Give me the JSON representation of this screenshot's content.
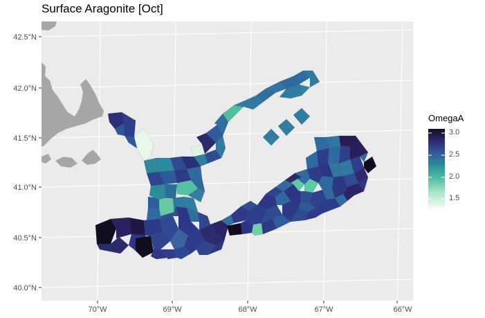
{
  "title": "Surface Aragonite [Oct]",
  "axes": {
    "y_ticks": [
      "42.5°N",
      "42.0°N",
      "41.5°N",
      "41.0°N",
      "40.5°N",
      "40.0°N"
    ],
    "x_ticks": [
      "70°W",
      "69°W",
      "68°W",
      "67°W",
      "66°W"
    ]
  },
  "legend": {
    "title": "OmegaA",
    "labels": [
      "3.0",
      "2.5",
      "2.0",
      "1.5"
    ]
  },
  "colors": {
    "panel": "#ebebeb",
    "grid": "#ffffff",
    "land": "#a6a6a6",
    "scale": [
      "#f2fbee",
      "#6fd0a6",
      "#2f8f99",
      "#2e6d9a",
      "#32418f",
      "#2b2060",
      "#120d1e"
    ]
  },
  "chart_data": {
    "type": "heatmap",
    "title": "Surface Aragonite [Oct]",
    "variable": "OmegaA",
    "xlim": [
      -70.7,
      -65.9
    ],
    "ylim": [
      39.9,
      42.65
    ],
    "color_range": [
      1.3,
      3.15
    ],
    "cells": [
      {
        "lon": -70.0,
        "lat": 40.55,
        "v": 3.05
      },
      {
        "lon": -69.85,
        "lat": 40.6,
        "v": 2.8
      },
      {
        "lon": -69.7,
        "lat": 40.55,
        "v": 2.75
      },
      {
        "lon": -69.55,
        "lat": 40.6,
        "v": 2.65
      },
      {
        "lon": -69.4,
        "lat": 40.55,
        "v": 2.55
      },
      {
        "lon": -69.4,
        "lat": 40.45,
        "v": 3.0
      },
      {
        "lon": -69.25,
        "lat": 40.55,
        "v": 2.5
      },
      {
        "lon": -69.1,
        "lat": 40.5,
        "v": 2.6
      },
      {
        "lon": -68.95,
        "lat": 40.5,
        "v": 2.45
      },
      {
        "lon": -68.8,
        "lat": 40.5,
        "v": 2.55
      },
      {
        "lon": -68.65,
        "lat": 40.5,
        "v": 2.6
      },
      {
        "lon": -68.5,
        "lat": 40.5,
        "v": 2.5
      },
      {
        "lon": -69.6,
        "lat": 40.45,
        "v": 2.85
      },
      {
        "lon": -69.2,
        "lat": 40.4,
        "v": 2.5
      },
      {
        "lon": -68.9,
        "lat": 40.38,
        "v": 2.45
      },
      {
        "lon": -68.6,
        "lat": 40.4,
        "v": 2.55
      },
      {
        "lon": -69.1,
        "lat": 40.65,
        "v": 2.4
      },
      {
        "lon": -68.85,
        "lat": 40.65,
        "v": 2.2
      },
      {
        "lon": -69.2,
        "lat": 40.8,
        "v": 1.8
      },
      {
        "lon": -69.0,
        "lat": 40.85,
        "v": 2.1
      },
      {
        "lon": -68.8,
        "lat": 40.8,
        "v": 2.3
      },
      {
        "lon": -69.1,
        "lat": 41.0,
        "v": 2.2
      },
      {
        "lon": -68.85,
        "lat": 41.0,
        "v": 1.9
      },
      {
        "lon": -68.7,
        "lat": 41.1,
        "v": 2.3
      },
      {
        "lon": -69.2,
        "lat": 41.2,
        "v": 2.15
      },
      {
        "lon": -69.0,
        "lat": 41.2,
        "v": 2.3
      },
      {
        "lon": -68.85,
        "lat": 41.2,
        "v": 2.6
      },
      {
        "lon": -69.3,
        "lat": 41.4,
        "v": 1.5
      },
      {
        "lon": -69.5,
        "lat": 41.6,
        "v": 2.6
      },
      {
        "lon": -68.7,
        "lat": 41.4,
        "v": 1.6
      },
      {
        "lon": -68.6,
        "lat": 41.45,
        "v": 2.7
      },
      {
        "lon": -68.5,
        "lat": 41.6,
        "v": 2.4
      },
      {
        "lon": -68.4,
        "lat": 41.75,
        "v": 2.3
      },
      {
        "lon": -68.2,
        "lat": 41.78,
        "v": 1.95
      },
      {
        "lon": -68.0,
        "lat": 41.85,
        "v": 2.3
      },
      {
        "lon": -67.8,
        "lat": 42.0,
        "v": 2.35
      },
      {
        "lon": -67.55,
        "lat": 42.1,
        "v": 2.3
      },
      {
        "lon": -67.3,
        "lat": 42.1,
        "v": 2.2
      },
      {
        "lon": -67.75,
        "lat": 41.55,
        "v": 2.2
      },
      {
        "lon": -67.55,
        "lat": 41.65,
        "v": 2.2
      },
      {
        "lon": -67.35,
        "lat": 41.7,
        "v": 2.2
      },
      {
        "lon": -68.35,
        "lat": 40.6,
        "v": 2.0
      },
      {
        "lon": -68.15,
        "lat": 40.55,
        "v": 3.05
      },
      {
        "lon": -67.95,
        "lat": 40.58,
        "v": 1.85
      },
      {
        "lon": -67.8,
        "lat": 40.65,
        "v": 2.55
      },
      {
        "lon": -67.6,
        "lat": 40.8,
        "v": 2.6
      },
      {
        "lon": -67.4,
        "lat": 40.95,
        "v": 1.8
      },
      {
        "lon": -67.25,
        "lat": 40.95,
        "v": 1.85
      },
      {
        "lon": -67.05,
        "lat": 41.1,
        "v": 2.5
      },
      {
        "lon": -66.9,
        "lat": 41.2,
        "v": 2.45
      },
      {
        "lon": -66.75,
        "lat": 41.35,
        "v": 2.4
      },
      {
        "lon": -66.6,
        "lat": 41.4,
        "v": 2.8
      },
      {
        "lon": -66.45,
        "lat": 41.35,
        "v": 3.05
      },
      {
        "lon": -66.8,
        "lat": 41.45,
        "v": 2.55
      },
      {
        "lon": -67.05,
        "lat": 41.4,
        "v": 2.4
      },
      {
        "lon": -66.65,
        "lat": 41.1,
        "v": 2.6
      },
      {
        "lon": -67.2,
        "lat": 40.8,
        "v": 2.6
      },
      {
        "lon": -67.5,
        "lat": 40.7,
        "v": 2.55
      },
      {
        "lon": -67.3,
        "lat": 41.2,
        "v": 2.45
      },
      {
        "lon": -66.95,
        "lat": 40.95,
        "v": 2.5
      }
    ]
  }
}
